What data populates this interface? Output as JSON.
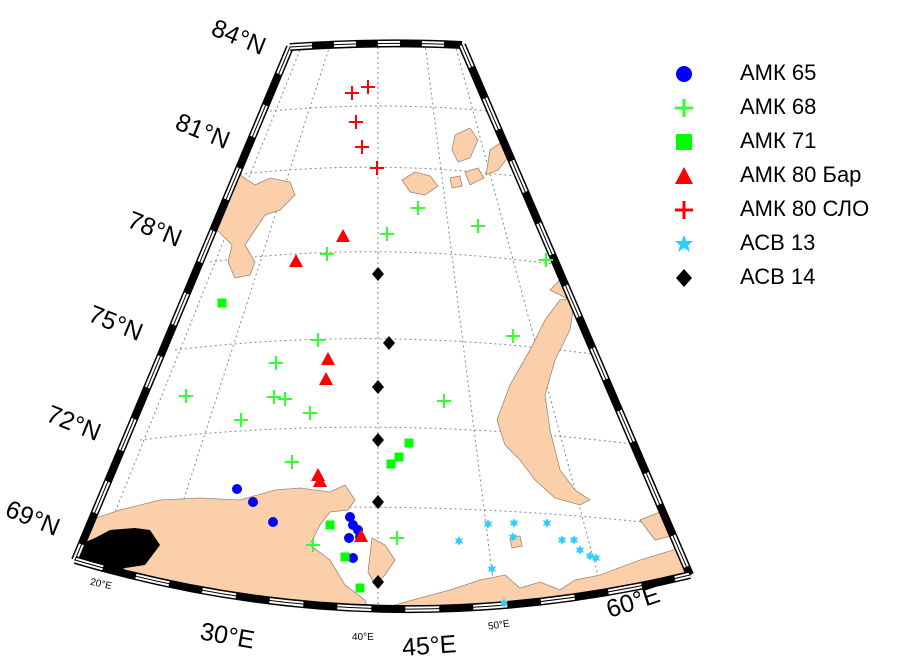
{
  "map": {
    "colors": {
      "land": "#fbcfaa",
      "land_stroke": "#9a8a7a",
      "frame": "#000000",
      "graticule": "#888888"
    },
    "latitude_labels": [
      {
        "name": "84",
        "text": "84°N"
      },
      {
        "name": "81",
        "text": "81°N"
      },
      {
        "name": "78",
        "text": "78°N"
      },
      {
        "name": "75",
        "text": "75°N"
      },
      {
        "name": "72",
        "text": "72°N"
      },
      {
        "name": "69",
        "text": "69°N"
      }
    ],
    "longitude_labels": [
      {
        "name": "20",
        "text": "20°E",
        "size": "small"
      },
      {
        "name": "30",
        "text": "30°E",
        "size": "big"
      },
      {
        "name": "40",
        "text": "40°E",
        "size": "small"
      },
      {
        "name": "45",
        "text": "45°E",
        "size": "big"
      },
      {
        "name": "50",
        "text": "50°E",
        "size": "small"
      },
      {
        "name": "60",
        "text": "60°E",
        "size": "big"
      }
    ]
  },
  "legend": [
    {
      "key": "amk65",
      "label": "АМК 65",
      "marker": "circle",
      "color": "#0000ff"
    },
    {
      "key": "amk68",
      "label": "АМК 68",
      "marker": "plus",
      "color": "#33ff33"
    },
    {
      "key": "amk71",
      "label": "АМК 71",
      "marker": "square",
      "color": "#00ff00"
    },
    {
      "key": "amk80bar",
      "label": "АМК 80 Бар",
      "marker": "triangle",
      "color": "#ff0000"
    },
    {
      "key": "amk80slo",
      "label": "АМК 80 СЛО",
      "marker": "plus",
      "color": "#ff0000"
    },
    {
      "key": "asv13",
      "label": "АСВ 13",
      "marker": "star",
      "color": "#33ccff"
    },
    {
      "key": "asv14",
      "label": "АСВ 14",
      "marker": "diamond",
      "color": "#000000"
    }
  ]
}
